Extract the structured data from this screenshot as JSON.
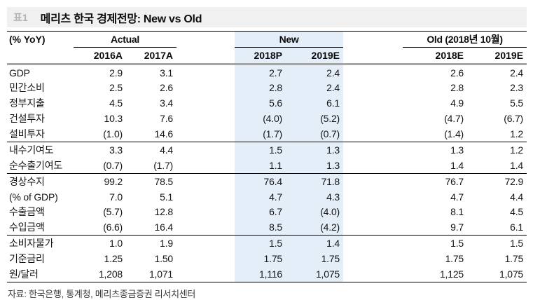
{
  "title_bar": {
    "tag": "표1",
    "title": "메리츠 한국 경제전망: New vs Old"
  },
  "header": {
    "unit": "(% YoY)",
    "groups": [
      {
        "label": "Actual",
        "columns": [
          "2016A",
          "2017A"
        ]
      },
      {
        "label": "New",
        "columns": [
          "2018P",
          "2019E"
        ],
        "highlighted": true
      },
      {
        "label": "Old (2018년 10월)",
        "columns": [
          "2018E",
          "2019E"
        ]
      }
    ]
  },
  "chart_data": {
    "type": "table",
    "title": "메리츠 한국 경제전망: New vs Old",
    "unit": "% YoY",
    "column_groups": [
      "Actual",
      "Actual",
      "New",
      "New",
      "Old (2018년 10월)",
      "Old (2018년 10월)"
    ],
    "columns": [
      "2016A",
      "2017A",
      "2018P",
      "2019E",
      "2018E",
      "2019E"
    ],
    "highlighted_columns": [
      "2018P",
      "2019E"
    ],
    "rows": [
      {
        "label": "GDP",
        "values": [
          "2.9",
          "3.1",
          "2.7",
          "2.4",
          "2.6",
          "2.4"
        ]
      },
      {
        "label": "민간소비",
        "values": [
          "2.5",
          "2.6",
          "2.8",
          "2.4",
          "2.8",
          "2.3"
        ]
      },
      {
        "label": "정부지출",
        "values": [
          "4.5",
          "3.4",
          "5.6",
          "6.1",
          "4.9",
          "5.5"
        ]
      },
      {
        "label": "건설투자",
        "values": [
          "10.3",
          "7.6",
          "(4.0)",
          "(5.2)",
          "(4.7)",
          "(6.7)"
        ]
      },
      {
        "label": "설비투자",
        "values": [
          "(1.0)",
          "14.6",
          "(1.7)",
          "(0.7)",
          "(1.4)",
          "1.2"
        ],
        "divider_below": true
      },
      {
        "label": "내수기여도",
        "values": [
          "3.3",
          "4.4",
          "1.5",
          "1.3",
          "1.3",
          "1.2"
        ]
      },
      {
        "label": "순수출기여도",
        "values": [
          "(0.7)",
          "(1.7)",
          "1.1",
          "1.3",
          "1.4",
          "1.4"
        ],
        "divider_below": true
      },
      {
        "label": "경상수지",
        "values": [
          "99.2",
          "78.5",
          "76.4",
          "71.8",
          "76.7",
          "72.9"
        ]
      },
      {
        "label": "(% of GDP)",
        "values": [
          "7.0",
          "5.1",
          "4.7",
          "4.3",
          "4.7",
          "4.4"
        ]
      },
      {
        "label": "수출금액",
        "values": [
          "(5.7)",
          "12.8",
          "6.7",
          "(4.0)",
          "8.1",
          "4.5"
        ]
      },
      {
        "label": "수입금액",
        "values": [
          "(6.6)",
          "16.4",
          "8.5",
          "(4.2)",
          "9.7",
          "6.1"
        ],
        "divider_below": true
      },
      {
        "label": "소비자물가",
        "values": [
          "1.0",
          "1.9",
          "1.5",
          "1.4",
          "1.5",
          "1.5"
        ]
      },
      {
        "label": "기준금리",
        "values": [
          "1.25",
          "1.50",
          "1.75",
          "1.75",
          "1.75",
          "1.75"
        ]
      },
      {
        "label": "원/달러",
        "values": [
          "1,208",
          "1,071",
          "1,116",
          "1,075",
          "1,125",
          "1,075"
        ]
      }
    ]
  },
  "footer": {
    "source": "자료: 한국은행, 통계청, 메리츠종금증권 리서치센터"
  },
  "colors": {
    "highlight_blue": "#e4eef8",
    "title_bar_bg": "#f0f0f0",
    "tag_gray": "#b1b1b1",
    "thick_rule_gray": "#a6a6a6",
    "text": "#141414"
  }
}
